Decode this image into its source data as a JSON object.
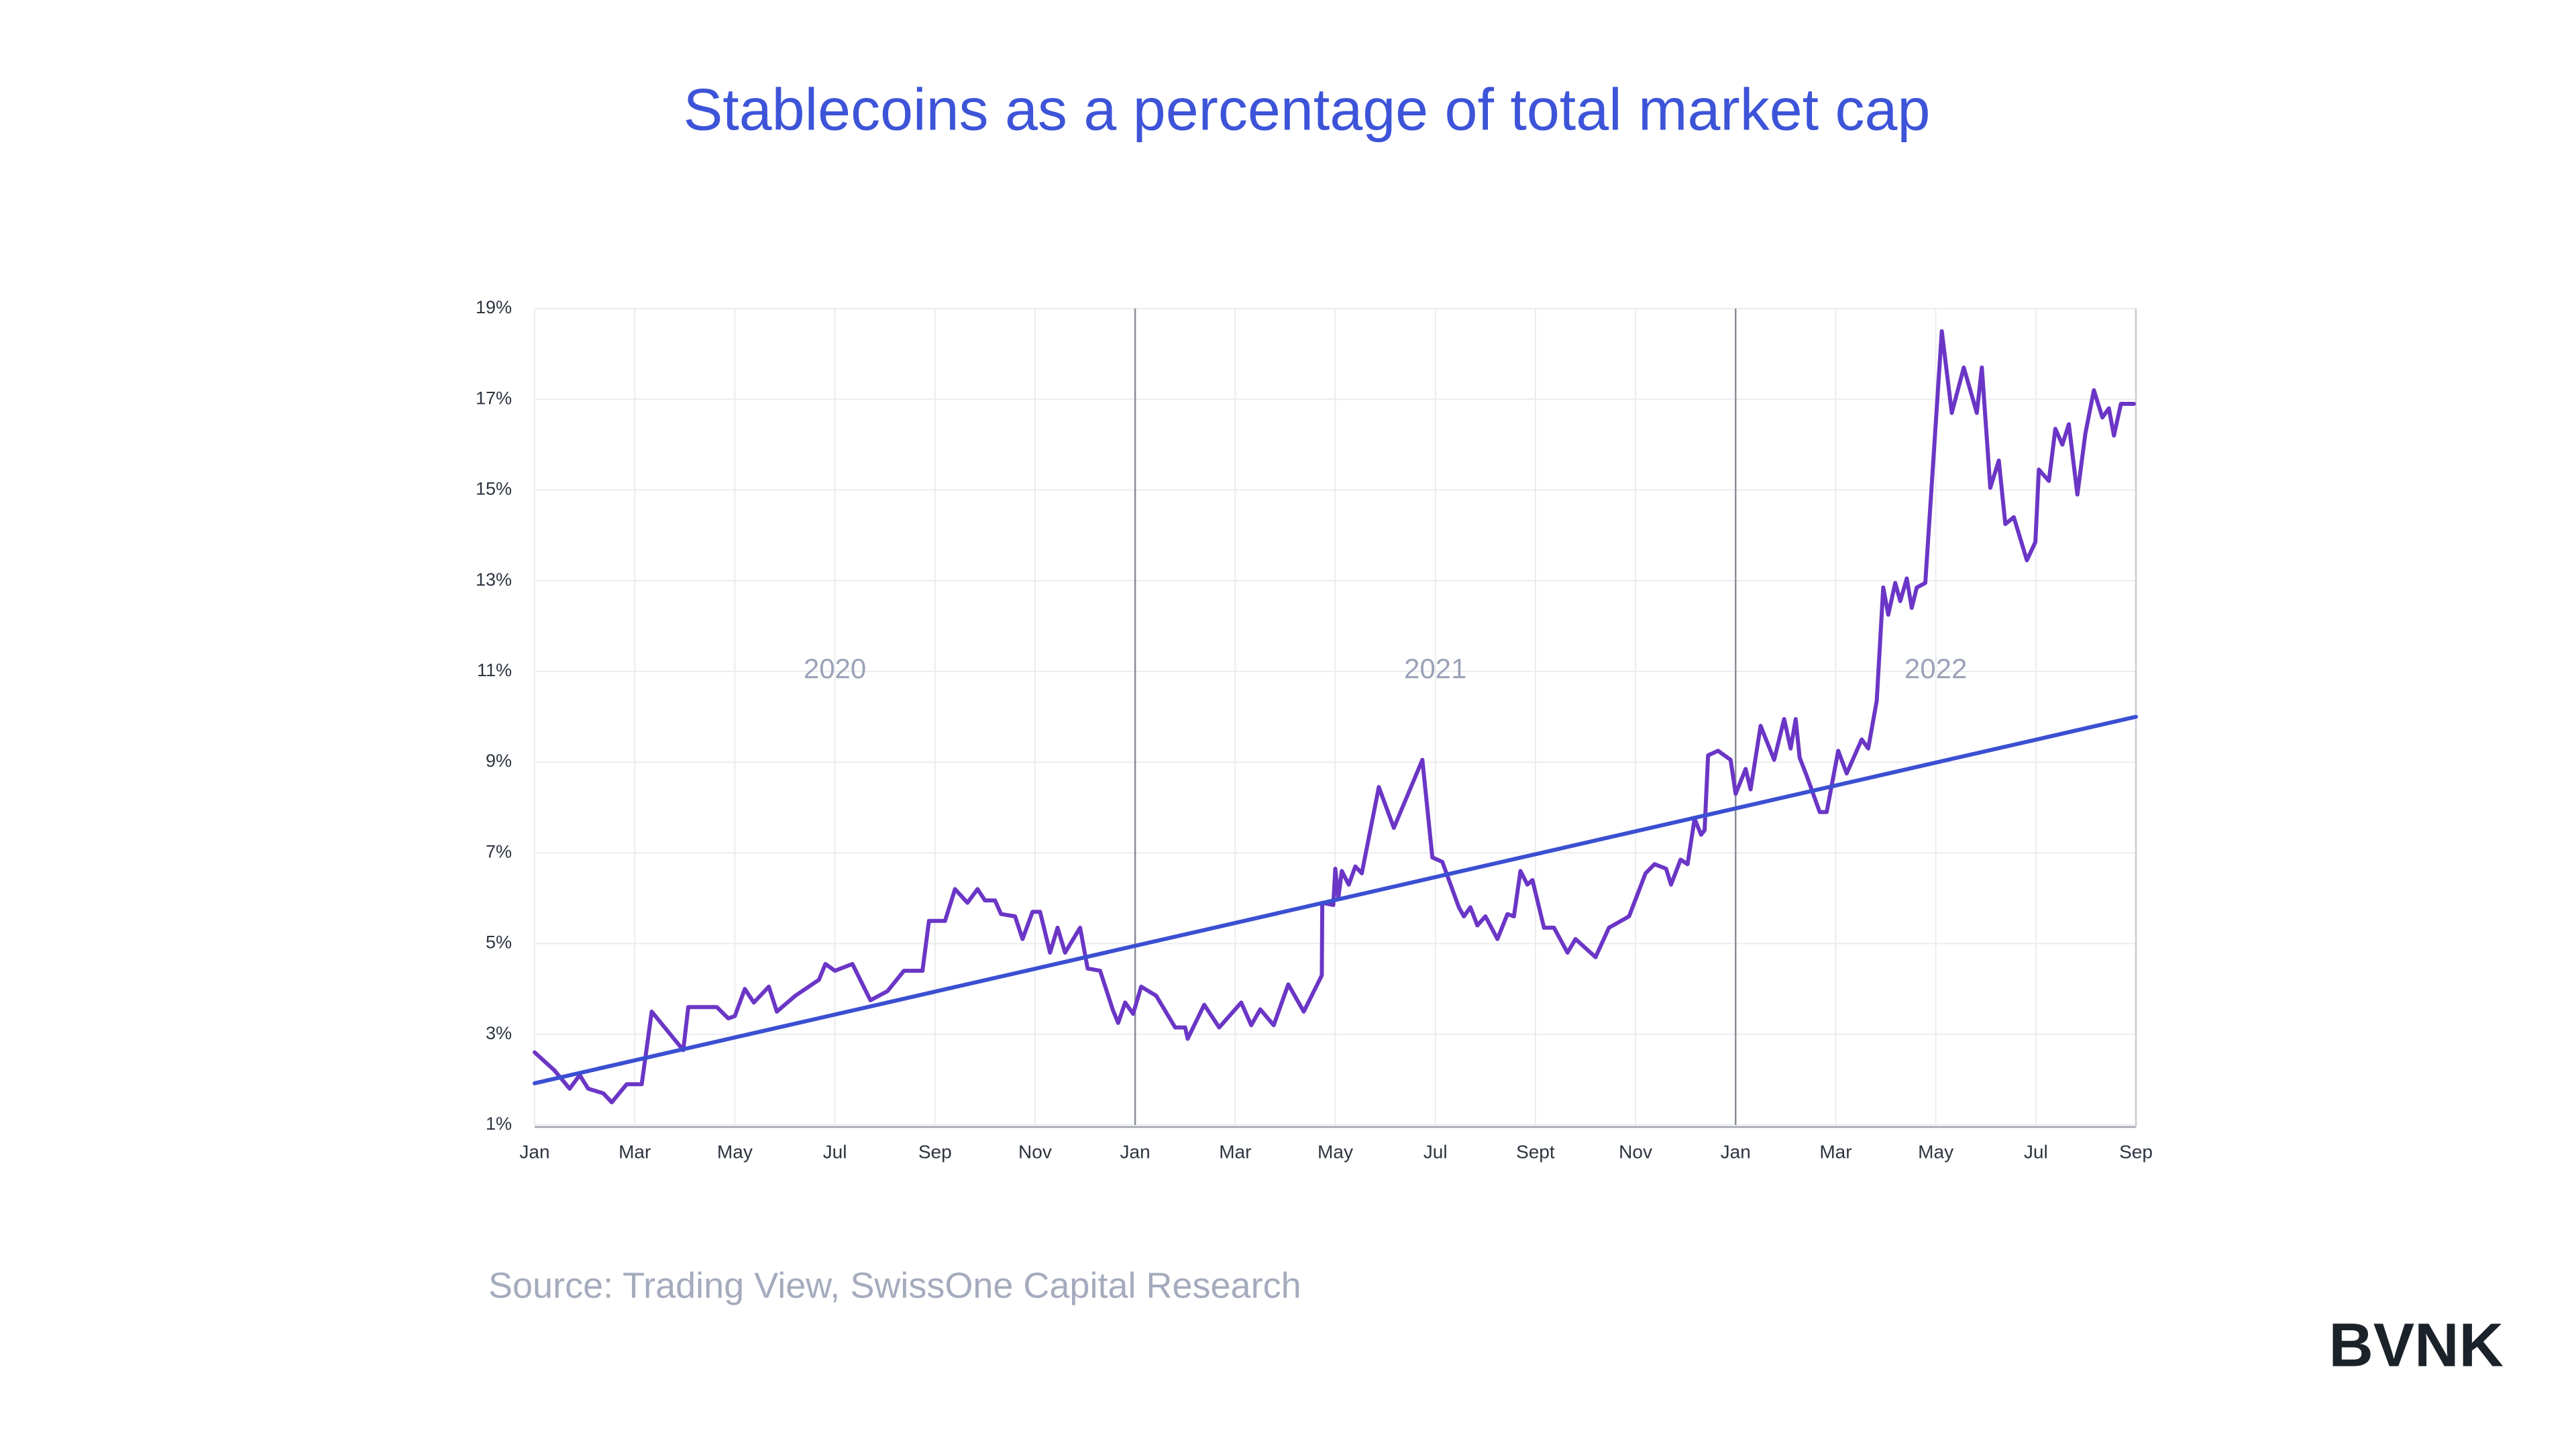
{
  "chart_data": {
    "type": "line",
    "title": "Stablecoins as a percentage of total market cap",
    "annotations": [
      "2020",
      "2021",
      "2022"
    ],
    "xlim": [
      0,
      32
    ],
    "xticks": [
      {
        "value": 0,
        "label": "Jan"
      },
      {
        "value": 2,
        "label": "Mar"
      },
      {
        "value": 4,
        "label": "May"
      },
      {
        "value": 6,
        "label": "Jul"
      },
      {
        "value": 8,
        "label": "Sep"
      },
      {
        "value": 10,
        "label": "Nov"
      },
      {
        "value": 12,
        "label": "Jan"
      },
      {
        "value": 14,
        "label": "Mar"
      },
      {
        "value": 16,
        "label": "May"
      },
      {
        "value": 18,
        "label": "Jul"
      },
      {
        "value": 20,
        "label": "Sept"
      },
      {
        "value": 22,
        "label": "Nov"
      },
      {
        "value": 24,
        "label": "Jan"
      },
      {
        "value": 26,
        "label": "Mar"
      },
      {
        "value": 28,
        "label": "May"
      },
      {
        "value": 30,
        "label": "Jul"
      },
      {
        "value": 32,
        "label": "Sep"
      }
    ],
    "ylim": [
      1,
      19
    ],
    "yticks": [
      {
        "value": 1,
        "label": "1%"
      },
      {
        "value": 3,
        "label": "3%"
      },
      {
        "value": 5,
        "label": "5%"
      },
      {
        "value": 7,
        "label": "7%"
      },
      {
        "value": 9,
        "label": "9%"
      },
      {
        "value": 11,
        "label": "11%"
      },
      {
        "value": 13,
        "label": "13%"
      },
      {
        "value": 15,
        "label": "15%"
      },
      {
        "value": 17,
        "label": "17%"
      },
      {
        "value": 19,
        "label": "19%"
      }
    ],
    "grid": true,
    "series": [
      {
        "color": "#6b36c6",
        "x": [
          0,
          0.4,
          0.7,
          0.9,
          1.07,
          1.37,
          1.54,
          1.84,
          2.14,
          2.34,
          2.97,
          3.07,
          3.64,
          3.87,
          4.0,
          4.2,
          4.38,
          4.68,
          4.84,
          5.21,
          5.68,
          5.81,
          6.0,
          6.35,
          6.71,
          7.05,
          7.38,
          7.75,
          7.88,
          8.2,
          8.4,
          8.65,
          8.85,
          9.0,
          9.2,
          9.32,
          9.6,
          9.75,
          9.95,
          10.1,
          10.3,
          10.45,
          10.6,
          10.9,
          11.05,
          11.3,
          11.55,
          11.66,
          11.8,
          11.96,
          12.12,
          12.42,
          12.8,
          13.0,
          13.05,
          13.38,
          13.68,
          14.12,
          14.32,
          14.5,
          14.77,
          15.06,
          15.37,
          15.73,
          15.74,
          15.96,
          16.0,
          16.06,
          16.13,
          16.27,
          16.4,
          16.53,
          16.87,
          17.17,
          17.74,
          17.94,
          18.14,
          18.47,
          18.57,
          18.7,
          18.84,
          19.0,
          19.24,
          19.44,
          19.57,
          19.7,
          19.84,
          19.94,
          20.17,
          20.37,
          20.64,
          20.8,
          21.2,
          21.47,
          21.87,
          22.2,
          22.38,
          22.61,
          22.71,
          22.9,
          23.04,
          23.18,
          23.31,
          23.38,
          23.45,
          23.65,
          23.9,
          24.0,
          24.2,
          24.3,
          24.5,
          24.77,
          24.97,
          25.1,
          25.2,
          25.28,
          25.42,
          25.68,
          25.82,
          26.05,
          26.22,
          26.52,
          26.65,
          26.82,
          26.95,
          27.05,
          27.19,
          27.29,
          27.42,
          27.52,
          27.62,
          27.79,
          28.12,
          28.32,
          28.56,
          28.82,
          28.92,
          29.09,
          29.26,
          29.39,
          29.56,
          29.82,
          29.99,
          30.06,
          30.26,
          30.39,
          30.53,
          30.66,
          30.83,
          30.99,
          31.16,
          31.33,
          31.46,
          31.56,
          31.7,
          31.96
        ],
        "values": [
          2.6,
          2.2,
          1.8,
          2.1,
          1.8,
          1.7,
          1.5,
          1.9,
          1.9,
          3.5,
          2.65,
          3.6,
          3.6,
          3.35,
          3.4,
          4.0,
          3.7,
          4.05,
          3.5,
          3.85,
          4.2,
          4.55,
          4.4,
          4.55,
          3.75,
          3.95,
          4.4,
          4.4,
          5.5,
          5.5,
          6.2,
          5.9,
          6.2,
          5.95,
          5.95,
          5.65,
          5.6,
          5.1,
          5.7,
          5.7,
          4.8,
          5.35,
          4.8,
          5.35,
          4.45,
          4.4,
          3.55,
          3.25,
          3.7,
          3.45,
          4.05,
          3.85,
          3.15,
          3.15,
          2.9,
          3.65,
          3.15,
          3.7,
          3.2,
          3.55,
          3.2,
          4.1,
          3.5,
          4.3,
          5.9,
          5.85,
          6.65,
          6.0,
          6.6,
          6.3,
          6.7,
          6.55,
          8.45,
          7.55,
          9.05,
          6.9,
          6.8,
          5.8,
          5.6,
          5.8,
          5.4,
          5.6,
          5.1,
          5.65,
          5.6,
          6.6,
          6.3,
          6.4,
          5.35,
          5.35,
          4.8,
          5.1,
          4.7,
          5.35,
          5.6,
          6.55,
          6.75,
          6.65,
          6.3,
          6.85,
          6.75,
          7.75,
          7.4,
          7.5,
          9.15,
          9.25,
          9.05,
          8.3,
          8.85,
          8.4,
          9.8,
          9.05,
          9.95,
          9.3,
          9.95,
          9.1,
          8.7,
          7.9,
          7.9,
          9.25,
          8.75,
          9.5,
          9.3,
          10.35,
          12.85,
          12.25,
          12.95,
          12.55,
          13.05,
          12.4,
          12.85,
          12.95,
          18.5,
          16.7,
          17.7,
          16.7,
          17.7,
          15.05,
          15.65,
          14.25,
          14.4,
          13.45,
          13.85,
          15.45,
          15.2,
          16.35,
          16.0,
          16.45,
          14.9,
          16.25,
          17.2,
          16.6,
          16.8,
          16.2,
          16.9,
          16.9
        ]
      },
      {
        "color": "#3b4fd2",
        "x": [
          0,
          32
        ],
        "values": [
          1.92,
          10.0
        ]
      }
    ]
  },
  "footer": {
    "source": "Source: Trading View, SwissOne Capital Research",
    "logo": "BVNK"
  }
}
